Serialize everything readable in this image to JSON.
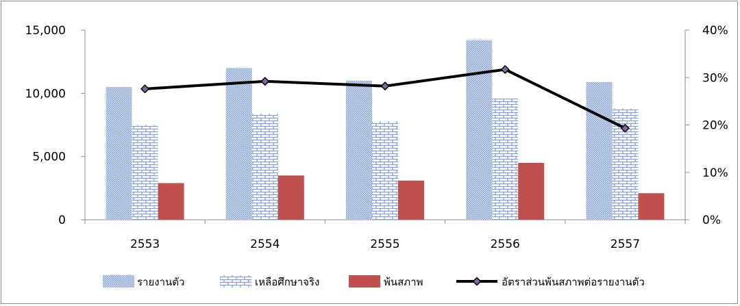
{
  "chart_data": {
    "type": "bar",
    "categories": [
      "2553",
      "2554",
      "2555",
      "2556",
      "2557"
    ],
    "series": [
      {
        "name": "รายงานตัว",
        "kind": "bar",
        "axis": "left",
        "values": [
          10500,
          12000,
          11000,
          14200,
          10900
        ],
        "color": "#8ea9db",
        "pattern": "diagonal-hatch"
      },
      {
        "name": "เหลือศึกษาจริง",
        "kind": "bar",
        "axis": "left",
        "values": [
          7500,
          8400,
          7800,
          9600,
          8800
        ],
        "color": "#8ea9db",
        "pattern": "brick"
      },
      {
        "name": "พ้นสภาพ",
        "kind": "bar",
        "axis": "left",
        "values": [
          2900,
          3500,
          3100,
          4500,
          2100
        ],
        "color": "#c0504d",
        "pattern": "solid"
      },
      {
        "name": "อัตราส่วนพ้นสภาพต่อรายงานตัว",
        "kind": "line",
        "axis": "right",
        "values": [
          0.276,
          0.292,
          0.282,
          0.317,
          0.193
        ],
        "color": "#000000",
        "marker_color": "#8064a2"
      }
    ],
    "y_left": {
      "min": 0,
      "max": 15000,
      "ticks": [
        0,
        5000,
        10000,
        15000
      ],
      "tick_labels": [
        "0",
        "5,000",
        "10,000",
        "15,000"
      ]
    },
    "y_right": {
      "min": 0,
      "max": 0.4,
      "ticks": [
        0,
        0.1,
        0.2,
        0.3,
        0.4
      ],
      "tick_labels": [
        "0%",
        "10%",
        "20%",
        "30%",
        "40%"
      ]
    },
    "grid": false,
    "legend_position": "bottom"
  }
}
